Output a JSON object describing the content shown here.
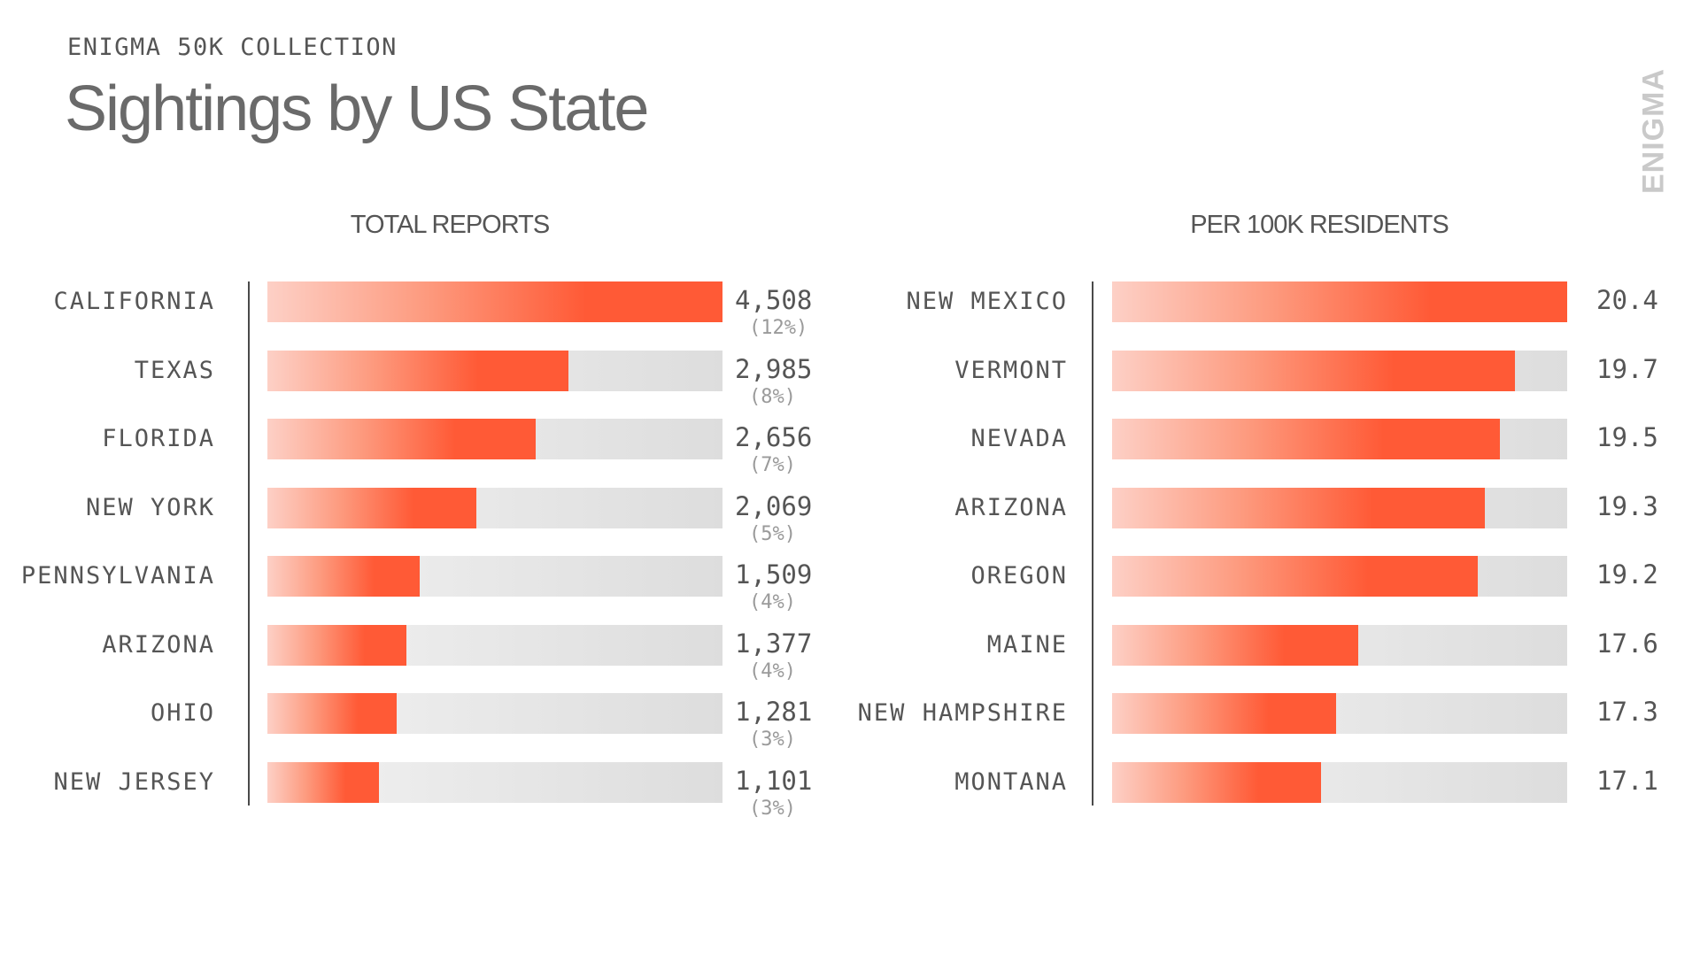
{
  "header": {
    "eyebrow": "ENIGMA 50K COLLECTION",
    "title": "Sightings by US State",
    "logo": "ENIGMA"
  },
  "colors": {
    "bar_fill": "#ff5a36",
    "bar_fill_light": "#fdd0c6",
    "track": "#e6e6e6",
    "text": "#555555",
    "subtext": "#9a9a9a",
    "logo": "#c9c9c9"
  },
  "chart_data": [
    {
      "type": "bar",
      "orientation": "horizontal",
      "title": "TOTAL REPORTS",
      "categories": [
        "CALIFORNIA",
        "TEXAS",
        "FLORIDA",
        "NEW YORK",
        "PENNSYLVANIA",
        "ARIZONA",
        "OHIO",
        "NEW JERSEY"
      ],
      "values": [
        4508,
        2985,
        2656,
        2069,
        1509,
        1377,
        1281,
        1101
      ],
      "value_labels": [
        "4,508",
        "2,985",
        "2,656",
        "2,069",
        "1,509",
        "1,377",
        "1,281",
        "1,101"
      ],
      "share_labels": [
        "(12%)",
        "(8%)",
        "(7%)",
        "(5%)",
        "(4%)",
        "(4%)",
        "(3%)",
        "(3%)"
      ],
      "xlim": [
        0,
        4508
      ],
      "grid": false,
      "legend": "none"
    },
    {
      "type": "bar",
      "orientation": "horizontal",
      "title": "PER 100K RESIDENTS",
      "categories": [
        "NEW MEXICO",
        "VERMONT",
        "NEVADA",
        "ARIZONA",
        "OREGON",
        "MAINE",
        "NEW HAMPSHIRE",
        "MONTANA"
      ],
      "values": [
        20.4,
        19.7,
        19.5,
        19.3,
        19.2,
        17.6,
        17.3,
        17.1
      ],
      "value_labels": [
        "20.4",
        "19.7",
        "19.5",
        "19.3",
        "19.2",
        "17.6",
        "17.3",
        "17.1"
      ],
      "xlim": [
        14.3,
        20.4
      ],
      "grid": false,
      "legend": "none"
    }
  ]
}
